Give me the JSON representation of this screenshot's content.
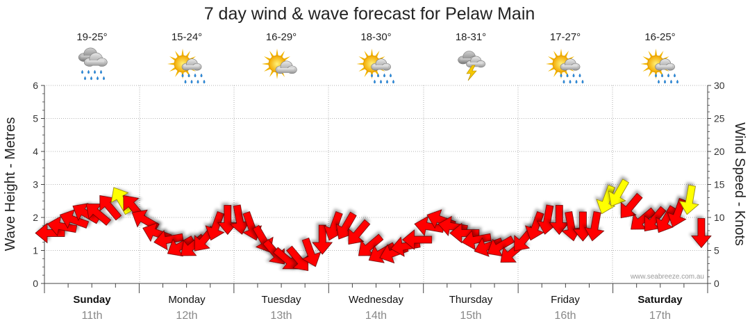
{
  "chart_data": {
    "type": "line",
    "title": "7 day wind & wave forecast for Pelaw Main",
    "left_axis": {
      "label": "Wave Height - Metres",
      "ticks": [
        "0",
        "1",
        "2",
        "3",
        "4",
        "5",
        "6"
      ],
      "range": [
        0,
        6
      ]
    },
    "right_axis": {
      "label": "Wind Speed - Knots",
      "ticks": [
        "0",
        "5",
        "10",
        "15",
        "20",
        "25",
        "30"
      ],
      "range": [
        0,
        30
      ]
    },
    "credit": "www.seabreeze.com.au",
    "days": [
      {
        "name": "Sunday",
        "date": "11th",
        "temp": "19-25°",
        "icon": "rain-cloud-icon",
        "bold": true
      },
      {
        "name": "Monday",
        "date": "12th",
        "temp": "15-24°",
        "icon": "sun-rain-icon",
        "bold": false
      },
      {
        "name": "Tuesday",
        "date": "13th",
        "temp": "16-29°",
        "icon": "sun-cloud-icon",
        "bold": false
      },
      {
        "name": "Wednesday",
        "date": "14th",
        "temp": "18-30°",
        "icon": "sun-rain-icon",
        "bold": false
      },
      {
        "name": "Thursday",
        "date": "15th",
        "temp": "18-31°",
        "icon": "storm-icon",
        "bold": false
      },
      {
        "name": "Friday",
        "date": "16th",
        "temp": "17-27°",
        "icon": "sun-rain-icon",
        "bold": false
      },
      {
        "name": "Saturday",
        "date": "17th",
        "temp": "16-25°",
        "icon": "sun-rain-icon",
        "bold": true
      }
    ],
    "series": [
      {
        "name": "Wind Speed - Knots",
        "x_unit": "hours from start",
        "x": [
          0,
          3,
          6,
          9,
          12,
          15,
          18,
          21,
          24,
          27,
          30,
          33,
          36,
          39,
          42,
          45,
          48,
          51,
          54,
          57,
          60,
          63,
          66,
          69,
          72,
          75,
          78,
          81,
          84,
          87,
          90,
          93,
          96,
          99,
          102,
          105,
          108,
          111,
          114,
          117,
          120,
          123,
          126,
          129,
          132,
          135,
          138,
          141,
          144,
          147,
          150,
          153,
          156,
          159,
          162,
          165
        ],
        "values": [
          7,
          8,
          9,
          10,
          10,
          11,
          12,
          11,
          9,
          7,
          6,
          5,
          5,
          6,
          8,
          9,
          9,
          8,
          6,
          4,
          3,
          3,
          4,
          6,
          8,
          8,
          7,
          5,
          4,
          4,
          5,
          6,
          8,
          9,
          8,
          7,
          6,
          5,
          5,
          4,
          6,
          8,
          9,
          9,
          8,
          8,
          8,
          12,
          13,
          11,
          9,
          9,
          9,
          10,
          12,
          7
        ],
        "direction_deg": [
          270,
          280,
          290,
          300,
          310,
          320,
          330,
          320,
          300,
          290,
          260,
          240,
          230,
          220,
          200,
          180,
          170,
          160,
          150,
          140,
          130,
          140,
          160,
          180,
          200,
          210,
          220,
          230,
          240,
          250,
          260,
          270,
          280,
          290,
          280,
          270,
          260,
          250,
          240,
          230,
          220,
          200,
          190,
          180,
          170,
          180,
          190,
          200,
          210,
          220,
          230,
          220,
          210,
          200,
          190,
          180
        ],
        "gust_colour_threshold": 12
      }
    ],
    "colors": {
      "wind_arrow": "#ff0000",
      "strong_wind_arrow": "#ffff00",
      "arrow_stroke": "#660000",
      "grid": "#9a9a9a"
    }
  }
}
